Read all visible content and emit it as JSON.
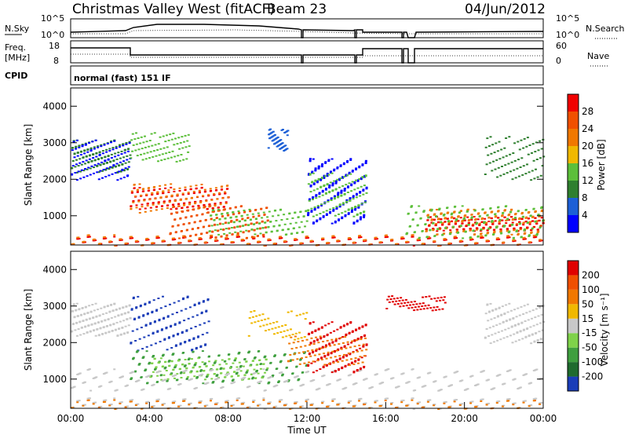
{
  "header": {
    "station": "Christmas Valley West (fitACF)",
    "beam": "Beam 23",
    "date": "04/Jun/2012"
  },
  "panels": {
    "nsky_label": "N.Sky",
    "nsky_ticks": [
      "10^5",
      "10^0"
    ],
    "nsearch_label": "N.Search",
    "nsearch_ticks": [
      "10^5",
      "10^0"
    ],
    "freq_label": "Freq.",
    "freq_unit": "[MHz]",
    "freq_ticks": [
      "18",
      "8"
    ],
    "nave_label": "Nave",
    "nave_ticks": [
      "60",
      "0"
    ],
    "cpid_label": "CPID",
    "cpid_text": "normal (fast) 151 IF"
  },
  "chart_data": [
    {
      "type": "heatmap",
      "name": "power",
      "ylabel": "Slant Range [km]",
      "yticks": [
        "4000",
        "3000",
        "2000",
        "1000"
      ],
      "ylim": [
        200,
        4500
      ],
      "colorbar_label": "Power [dB]",
      "colorbar_ticks": [
        "28",
        "24",
        "20",
        "16",
        "12",
        "8",
        "4"
      ],
      "colorbar_colors": [
        "#0000ff",
        "#1c5fd6",
        "#2f7f2f",
        "#5cbf3a",
        "#f0b800",
        "#f07800",
        "#f05000",
        "#f00000"
      ]
    },
    {
      "type": "heatmap",
      "name": "velocity",
      "ylabel": "Slant Range [km]",
      "yticks": [
        "4000",
        "3000",
        "2000",
        "1000"
      ],
      "ylim": [
        200,
        4500
      ],
      "xlabel": "Time UT",
      "xticks": [
        "00:00",
        "04:00",
        "08:00",
        "12:00",
        "16:00",
        "20:00",
        "00:00"
      ],
      "colorbar_label": "Velocity [m s⁻¹]",
      "colorbar_ticks": [
        "200",
        "100",
        "50",
        "15",
        "-15",
        "-50",
        "-100",
        "-200"
      ],
      "colorbar_colors": [
        "#1a3db8",
        "#1f6b2e",
        "#3f9f3f",
        "#7fd24a",
        "#c8c8c8",
        "#f0b800",
        "#f07800",
        "#f05000",
        "#e00000"
      ]
    }
  ]
}
